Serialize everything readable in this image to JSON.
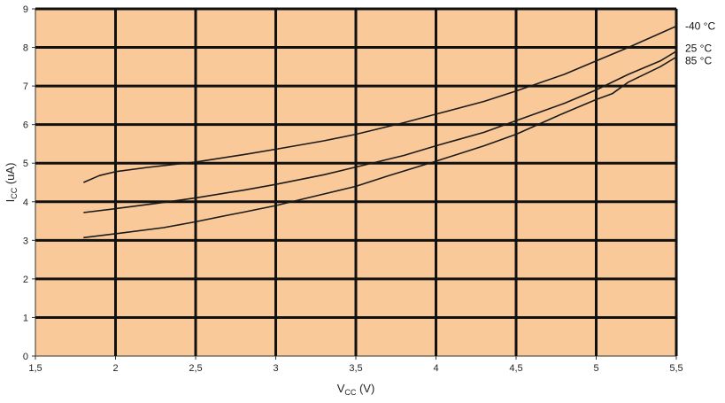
{
  "chart_data": {
    "type": "line",
    "title": "",
    "xlabel": {
      "main": "V",
      "sub": "CC",
      "unit": " (V)"
    },
    "ylabel": {
      "main": "I",
      "sub": "CC",
      "unit": " (uA)"
    },
    "xlim": [
      1.5,
      5.5
    ],
    "ylim": [
      0,
      9
    ],
    "x_ticks": [
      "1,5",
      "2",
      "2,5",
      "3",
      "3,5",
      "4",
      "4,5",
      "5",
      "5,5"
    ],
    "x_tick_values": [
      1.5,
      2,
      2.5,
      3,
      3.5,
      4,
      4.5,
      5,
      5.5
    ],
    "y_ticks": [
      "0",
      "1",
      "2",
      "3",
      "4",
      "5",
      "6",
      "7",
      "8",
      "9"
    ],
    "y_tick_values": [
      0,
      1,
      2,
      3,
      4,
      5,
      6,
      7,
      8,
      9
    ],
    "grid": true,
    "legend": "right, inline labels",
    "colors": {
      "plot_background": "#FAC99A",
      "grid": "#111111",
      "series_line": "#1a1a1a"
    },
    "series": [
      {
        "name": "-40 °C",
        "x": [
          1.8,
          1.9,
          2.0,
          2.2,
          2.5,
          2.8,
          3.0,
          3.3,
          3.5,
          3.8,
          4.0,
          4.3,
          4.5,
          4.8,
          5.0,
          5.2,
          5.5
        ],
        "y": [
          4.5,
          4.68,
          4.78,
          4.89,
          5.03,
          5.22,
          5.36,
          5.58,
          5.75,
          6.05,
          6.27,
          6.6,
          6.87,
          7.3,
          7.65,
          8.0,
          8.55
        ]
      },
      {
        "name": "25 °C",
        "x": [
          1.8,
          2.0,
          2.3,
          2.5,
          2.8,
          3.0,
          3.3,
          3.5,
          3.8,
          4.0,
          4.3,
          4.5,
          4.8,
          5.0,
          5.2,
          5.4,
          5.5
        ],
        "y": [
          3.72,
          3.82,
          3.98,
          4.1,
          4.3,
          4.45,
          4.7,
          4.9,
          5.2,
          5.45,
          5.8,
          6.1,
          6.55,
          6.9,
          7.3,
          7.65,
          7.9
        ]
      },
      {
        "name": "85 °C",
        "x": [
          1.8,
          2.0,
          2.3,
          2.5,
          2.7,
          2.8,
          3.0,
          3.2,
          3.5,
          3.7,
          4.0,
          4.3,
          4.5,
          4.8,
          5.0,
          5.1,
          5.2,
          5.4,
          5.5
        ],
        "y": [
          3.07,
          3.17,
          3.33,
          3.48,
          3.65,
          3.73,
          3.9,
          4.1,
          4.4,
          4.67,
          5.05,
          5.45,
          5.75,
          6.3,
          6.65,
          6.8,
          7.1,
          7.5,
          7.75
        ]
      }
    ],
    "series_labels": [
      "-40 °C",
      "25 °C",
      "85 °C"
    ],
    "series_label_y": [
      8.55,
      7.98,
      7.66
    ]
  }
}
